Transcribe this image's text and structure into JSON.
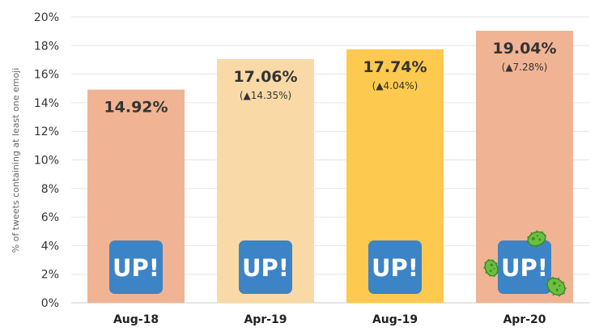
{
  "chart_data": {
    "type": "bar",
    "title": "",
    "xlabel": "",
    "ylabel": "% of tweets containing at least one emoji",
    "categories": [
      "Aug-18",
      "Apr-19",
      "Aug-19",
      "Apr-20"
    ],
    "values": [
      14.92,
      17.06,
      17.74,
      19.04
    ],
    "value_labels": [
      "14.92%",
      "17.06%",
      "17.74%",
      "19.04%"
    ],
    "change_labels": [
      "",
      "(▲14.35%)",
      "(▲4.04%)",
      "(▲7.28%)"
    ],
    "ylim": [
      0,
      20
    ],
    "yticks": [
      0,
      2,
      4,
      6,
      8,
      10,
      12,
      14,
      16,
      18,
      20
    ],
    "ytick_labels": [
      "0%",
      "2%",
      "4%",
      "6%",
      "8%",
      "10%",
      "12%",
      "14%",
      "16%",
      "18%",
      "20%"
    ],
    "bar_colors": [
      "#f0b494",
      "#f9d9a6",
      "#fdca4f",
      "#f0b494"
    ],
    "grid": true,
    "legend": "none"
  },
  "badges": {
    "label": "UP!",
    "color": "#3d84c6",
    "icon": "up-exclamation-icon",
    "decoration_icon": "microbe-icon"
  }
}
